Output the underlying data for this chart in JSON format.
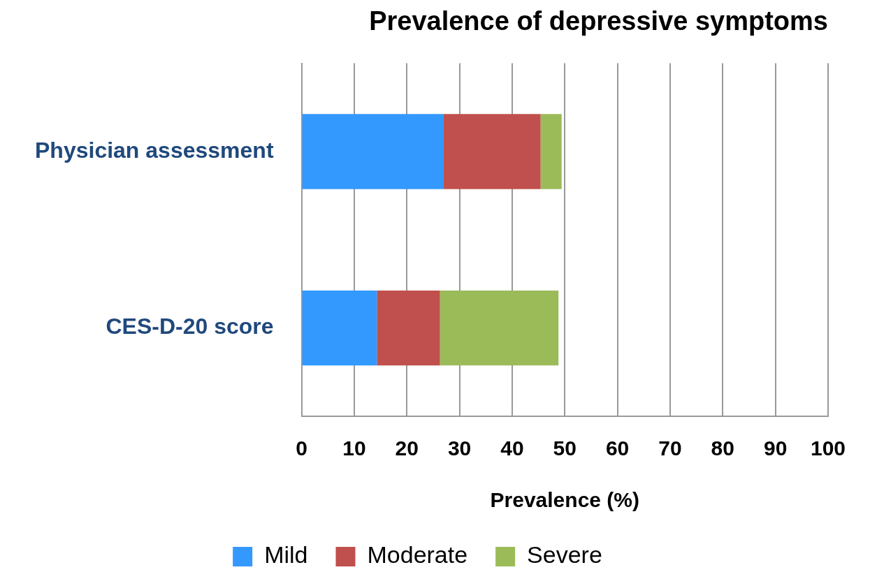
{
  "chart_data": {
    "type": "bar",
    "orientation": "horizontal",
    "stacked": true,
    "title": "Prevalence of depressive symptoms",
    "xlabel": "Prevalence (%)",
    "categories": [
      "Physician assessment",
      "CES-D-20 score"
    ],
    "series": [
      {
        "name": "Mild",
        "color": "#3399ff",
        "values": [
          27.0,
          14.3
        ]
      },
      {
        "name": "Moderate",
        "color": "#c0504d",
        "values": [
          18.4,
          12.0
        ]
      },
      {
        "name": "Severe",
        "color": "#9bbb59",
        "values": [
          4.0,
          22.5
        ]
      }
    ],
    "xlim": [
      0,
      100
    ],
    "xticks": [
      0,
      10,
      20,
      30,
      40,
      50,
      60,
      70,
      80,
      90,
      100
    ],
    "grid": "x",
    "legend": "bottom"
  }
}
